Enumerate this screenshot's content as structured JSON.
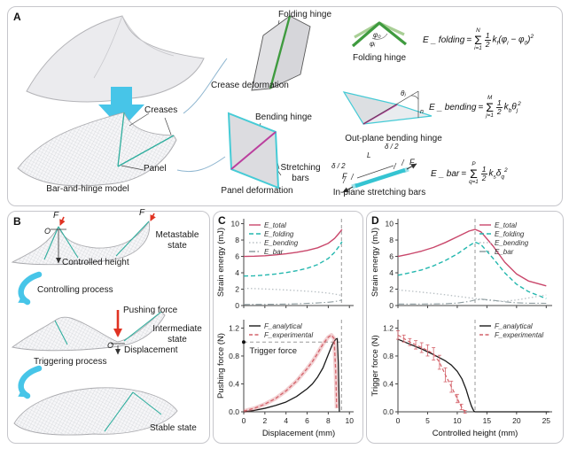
{
  "figure": {
    "panel_a": "A",
    "panel_b": "B",
    "panel_c": "C",
    "panel_d": "D"
  },
  "colors": {
    "accent_cyan": "#47c5e8",
    "green_hinge": "#3f9b3f",
    "green_light": "#a9cf96",
    "magenta_hinge": "#bb3f9e",
    "teal_edge": "#46cbd6",
    "teal_crease": "#2fae9e",
    "red_arrow": "#e03222",
    "e_total": "#c9476b",
    "e_folding": "#23b7ae",
    "e_bending": "#b9c0c4",
    "e_bar": "#8f9da0",
    "f_analytical": "#1a1a1a",
    "f_experimental": "#d4626a",
    "guide_line": "#9a9a9a"
  },
  "panelA": {
    "folding_hinge_pointer": "Folding hinge",
    "crease_deformation": "Crease deformation",
    "creases": "Creases",
    "panel": "Panel",
    "model_caption": "Bar-and-hinge model",
    "bending_hinge": "Bending hinge",
    "stretching_bars": "Stretching\nbars",
    "panel_deformation": "Panel deformation",
    "folding_hinge_caption": "Folding hinge",
    "phi0": "φ₀",
    "phii": "φᵢ",
    "outplane_caption": "Out-plane bending hinge",
    "theta": "θⱼ",
    "normal": "n",
    "inplane_caption": "In-plane stretching bars",
    "delta_left": "δ / 2",
    "delta_right": "δ / 2",
    "length": "L",
    "force_left": "F",
    "force_right": "F"
  },
  "equations": {
    "folding": {
      "lhs": "E _ folding",
      "sign": "=",
      "upper": "N",
      "lower": "i=1",
      "num": "1",
      "den": "2",
      "k": "k",
      "ksub": "f",
      "t1": "(φ",
      "s1": "i",
      "t2": " − φ",
      "s2": "0",
      "t3": ")",
      "exp": "2"
    },
    "bending": {
      "lhs": "E _ bending",
      "sign": "=",
      "upper": "M",
      "lower": "j=1",
      "num": "1",
      "den": "2",
      "k": "k",
      "ksub": "b",
      "t1": "θ",
      "s1": "j",
      "t2": "",
      "s2": "",
      "t3": "",
      "exp": "2"
    },
    "bar": {
      "lhs": "E _ bar",
      "sign": "=",
      "upper": "P",
      "lower": "q=1",
      "num": "1",
      "den": "2",
      "k": "k",
      "ksub": "s",
      "t1": "δ",
      "s1": "q",
      "t2": "",
      "s2": "",
      "t3": "",
      "exp": "2"
    }
  },
  "panelB": {
    "f1": "F",
    "f2": "F",
    "o1": "O",
    "o2": "O",
    "controlled_height": "Controlled height",
    "metastable": "Metastable state",
    "controlling": "Controlling process",
    "pushing_force": "Pushing force",
    "intermediate": "Intermediate state",
    "displacement": "Displacement",
    "triggering": "Triggering process",
    "stable": "Stable state"
  },
  "chart_data": {
    "c_top": {
      "type": "line",
      "title": "",
      "xlabel": "",
      "ylabel": "Strain energy (mJ)",
      "xlim": [
        0,
        10.4
      ],
      "ylim": [
        0,
        10.6
      ],
      "xticks": [
        0,
        2,
        4,
        6,
        8,
        10
      ],
      "yticks": [
        0,
        2,
        4,
        6,
        8,
        10
      ],
      "show_xtick_labels": false,
      "legend_pos": "tl",
      "vlines": [
        {
          "x": 9.25,
          "color": "#9a9a9a",
          "dash": "4,3"
        }
      ],
      "series": [
        {
          "name": "E_total",
          "color": "#c9476b",
          "dash": "",
          "width": 1.4,
          "x": [
            0,
            1,
            2,
            3,
            4,
            5,
            6,
            7,
            8,
            8.6,
            9,
            9.3
          ],
          "y": [
            6.0,
            6.02,
            6.08,
            6.18,
            6.32,
            6.5,
            6.73,
            7.05,
            7.6,
            8.2,
            8.8,
            9.3
          ]
        },
        {
          "name": "E_folding",
          "color": "#23b7ae",
          "dash": "5,3",
          "width": 1.4,
          "x": [
            0,
            1,
            2,
            3,
            4,
            5,
            6,
            7,
            8,
            8.6,
            9,
            9.3
          ],
          "y": [
            3.6,
            3.63,
            3.72,
            3.85,
            4.02,
            4.25,
            4.55,
            5.0,
            5.75,
            6.5,
            7.2,
            7.8
          ]
        },
        {
          "name": "E_bending",
          "color": "#b9c0c4",
          "dash": "1.5,2.5",
          "width": 1.3,
          "x": [
            0,
            1,
            2,
            3,
            4,
            5,
            6,
            7,
            8,
            8.6,
            9,
            9.3
          ],
          "y": [
            2.1,
            2.07,
            2.02,
            1.97,
            1.9,
            1.83,
            1.75,
            1.65,
            1.52,
            1.4,
            1.3,
            1.22
          ]
        },
        {
          "name": "E_bar",
          "color": "#8f9da0",
          "dash": "7,2.5,1.5,2.5",
          "width": 1.1,
          "x": [
            0,
            1,
            2,
            3,
            4,
            5,
            6,
            7,
            8,
            8.6,
            9,
            9.3
          ],
          "y": [
            0.13,
            0.14,
            0.15,
            0.16,
            0.18,
            0.21,
            0.26,
            0.32,
            0.4,
            0.48,
            0.58,
            0.68
          ]
        }
      ]
    },
    "c_bottom": {
      "type": "line",
      "title": "",
      "xlabel": "Displacement (mm)",
      "ylabel": "Pushing force (N)",
      "xlim": [
        0,
        10.4
      ],
      "ylim": [
        0,
        1.32
      ],
      "xticks": [
        0,
        2,
        4,
        6,
        8,
        10
      ],
      "yticks": [
        0,
        0.4,
        0.8,
        1.2
      ],
      "ytick_decimals": 1,
      "legend_pos": "tl",
      "hlines": [
        {
          "y": 1.0,
          "x2": 9.25,
          "color": "#9a9a9a",
          "dash": "4,3"
        }
      ],
      "vlines": [
        {
          "x": 9.25,
          "color": "#9a9a9a",
          "dash": "4,3"
        }
      ],
      "markers": [
        {
          "x": 0,
          "y": 1.0
        }
      ],
      "annotations": [
        {
          "x": 0.55,
          "y": 0.84,
          "text": "Trigger force"
        }
      ],
      "series": [
        {
          "name": "F_analytical",
          "color": "#1a1a1a",
          "dash": "",
          "width": 1.3,
          "x": [
            0,
            1,
            2,
            3,
            4,
            5,
            6,
            6.5,
            7,
            7.5,
            8,
            8.4,
            8.7,
            8.85,
            8.95,
            9.05
          ],
          "y": [
            0,
            0.02,
            0.05,
            0.09,
            0.14,
            0.22,
            0.33,
            0.4,
            0.5,
            0.63,
            0.82,
            0.97,
            1.04,
            1.05,
            0.7,
            0
          ]
        },
        {
          "name": "F_experimental",
          "color": "#d4626a",
          "dash": "4,2.5",
          "width": 1.3,
          "band": true,
          "x": [
            0,
            1,
            2,
            3,
            4,
            5,
            6,
            6.5,
            7,
            7.5,
            8,
            8.3,
            8.55,
            8.7,
            8.8
          ],
          "y": [
            0.01,
            0.05,
            0.11,
            0.19,
            0.3,
            0.44,
            0.62,
            0.72,
            0.84,
            0.97,
            1.07,
            1.1,
            1.05,
            0.6,
            0.05
          ]
        }
      ]
    },
    "d_top": {
      "type": "line",
      "title": "",
      "xlabel": "",
      "ylabel": "Strain energy (mJ)",
      "xlim": [
        0,
        26
      ],
      "ylim": [
        0,
        10.6
      ],
      "xticks": [
        0,
        5,
        10,
        15,
        20,
        25
      ],
      "yticks": [
        0,
        2,
        4,
        6,
        8,
        10
      ],
      "show_xtick_labels": false,
      "legend_pos": "tr",
      "vlines": [
        {
          "x": 13,
          "color": "#9a9a9a",
          "dash": "4,3"
        }
      ],
      "series": [
        {
          "name": "E_total",
          "color": "#c9476b",
          "dash": "",
          "width": 1.4,
          "x": [
            0,
            2,
            4,
            6,
            8,
            10,
            12,
            13,
            14,
            16,
            18,
            20,
            22,
            25
          ],
          "y": [
            6.0,
            6.3,
            6.65,
            7.1,
            7.7,
            8.4,
            9.1,
            9.3,
            9.0,
            7.3,
            5.3,
            3.85,
            3.0,
            2.4
          ]
        },
        {
          "name": "E_folding",
          "color": "#23b7ae",
          "dash": "5,3",
          "width": 1.4,
          "x": [
            0,
            2,
            4,
            6,
            8,
            10,
            12,
            13,
            14,
            16,
            18,
            20,
            22,
            25
          ],
          "y": [
            3.7,
            4.0,
            4.35,
            4.85,
            5.5,
            6.3,
            7.3,
            7.75,
            7.45,
            5.8,
            4.0,
            2.6,
            1.7,
            0.85
          ]
        },
        {
          "name": "E_bending",
          "color": "#b9c0c4",
          "dash": "1.5,2.5",
          "width": 1.3,
          "x": [
            0,
            2,
            4,
            6,
            8,
            10,
            12,
            13,
            14,
            16,
            18,
            20,
            22,
            25
          ],
          "y": [
            1.9,
            1.77,
            1.63,
            1.48,
            1.32,
            1.13,
            0.95,
            0.85,
            0.75,
            0.58,
            0.52,
            0.68,
            0.92,
            1.3
          ]
        },
        {
          "name": "E_bar",
          "color": "#8f9da0",
          "dash": "7,2.5,1.5,2.5",
          "width": 1.1,
          "x": [
            0,
            2,
            4,
            6,
            8,
            10,
            12,
            13,
            14,
            16,
            18,
            20,
            22,
            25
          ],
          "y": [
            0.18,
            0.18,
            0.19,
            0.2,
            0.22,
            0.3,
            0.5,
            0.68,
            0.78,
            0.65,
            0.45,
            0.33,
            0.28,
            0.27
          ]
        }
      ]
    },
    "d_bottom": {
      "type": "line",
      "title": "",
      "xlabel": "Controlled height (mm)",
      "ylabel": "Trigger force (N)",
      "xlim": [
        0,
        26
      ],
      "ylim": [
        0,
        1.32
      ],
      "xticks": [
        0,
        5,
        10,
        15,
        20,
        25
      ],
      "yticks": [
        0,
        0.4,
        0.8,
        1.2
      ],
      "ytick_decimals": 1,
      "legend_pos": "tr",
      "vlines": [
        {
          "x": 13,
          "color": "#9a9a9a",
          "dash": "4,3"
        }
      ],
      "series": [
        {
          "name": "F_analytical",
          "color": "#1a1a1a",
          "dash": "",
          "width": 1.3,
          "x": [
            0,
            2,
            4,
            6,
            8,
            9,
            10,
            10.8,
            11.5,
            12,
            12.4,
            12.8,
            13,
            15,
            20,
            25.5
          ],
          "y": [
            1.04,
            0.97,
            0.9,
            0.82,
            0.73,
            0.67,
            0.58,
            0.47,
            0.32,
            0.18,
            0.08,
            0.01,
            0,
            0,
            0,
            0
          ]
        },
        {
          "name": "F_experimental",
          "color": "#d4626a",
          "dash": "4,2.5",
          "width": 1.2,
          "x": [
            0,
            1,
            2,
            3,
            4,
            5,
            6,
            7,
            8,
            9,
            10,
            10.7,
            11.3
          ],
          "y": [
            1.1,
            1.05,
            1.0,
            0.96,
            0.92,
            0.88,
            0.83,
            0.71,
            0.53,
            0.36,
            0.19,
            0.07,
            0.0
          ],
          "yerr": [
            0.06,
            0.05,
            0.05,
            0.06,
            0.07,
            0.08,
            0.09,
            0.1,
            0.1,
            0.08,
            0.06,
            0.04,
            0.02
          ]
        }
      ]
    }
  }
}
